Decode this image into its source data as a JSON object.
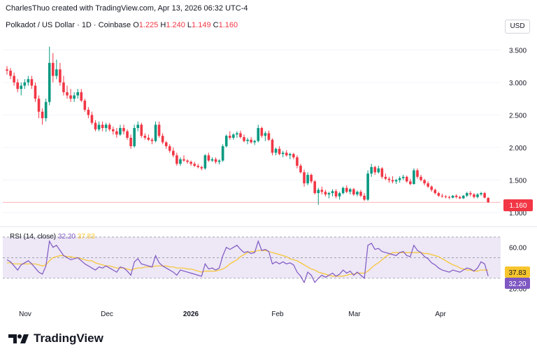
{
  "credit": "CharlesThuo created with TradingView.com, Apr 13, 2026 06:32 UTC-4",
  "legend": {
    "symbol": "Polkadot / US Dollar · 1D · Coinbase",
    "open_label": "O",
    "open": "1.225",
    "high_label": "H",
    "high": "1.240",
    "low_label": "L",
    "low": "1.149",
    "close_label": "C",
    "close": "1.160"
  },
  "currency_button": "USD",
  "rsi_legend": {
    "title": "RSI (14, close)",
    "rsi": "32.20",
    "ma": "37.83"
  },
  "brand": "TradingView",
  "colors": {
    "up": "#089981",
    "down": "#f23645",
    "rsi_line": "#7e57c2",
    "rsi_ma": "#f7c52d",
    "rsi_band": "#ede7f6",
    "text": "#131722"
  },
  "chart_data": [
    {
      "type": "candlestick",
      "title": "Polkadot / US Dollar · 1D · Coinbase",
      "ylim": [
        0.85,
        3.75
      ],
      "yticks": [
        "3.500",
        "3.000",
        "2.500",
        "2.000",
        "1.500",
        "1.000"
      ],
      "xticks": [
        "Nov",
        "Dec",
        "2026",
        "Feb",
        "Mar",
        "Apr"
      ],
      "last_price_label": "1.160",
      "candles": [
        [
          3.2,
          3.25,
          3.12,
          3.18
        ],
        [
          3.18,
          3.22,
          3.05,
          3.1
        ],
        [
          3.1,
          3.15,
          2.95,
          3.0
        ],
        [
          3.0,
          3.05,
          2.85,
          2.9
        ],
        [
          2.9,
          3.0,
          2.8,
          2.95
        ],
        [
          2.95,
          3.05,
          2.9,
          3.0
        ],
        [
          3.0,
          3.1,
          2.95,
          3.05
        ],
        [
          3.05,
          3.1,
          2.9,
          2.95
        ],
        [
          2.95,
          3.0,
          2.7,
          2.75
        ],
        [
          2.75,
          2.8,
          2.45,
          2.55
        ],
        [
          2.55,
          2.6,
          2.35,
          2.45
        ],
        [
          2.45,
          2.75,
          2.4,
          2.7
        ],
        [
          2.7,
          3.55,
          2.65,
          3.3
        ],
        [
          3.3,
          3.45,
          3.0,
          3.1
        ],
        [
          3.1,
          3.35,
          3.05,
          3.2
        ],
        [
          3.2,
          3.3,
          2.95,
          3.0
        ],
        [
          3.0,
          3.1,
          2.8,
          2.85
        ],
        [
          2.85,
          2.95,
          2.75,
          2.8
        ],
        [
          2.8,
          2.9,
          2.7,
          2.75
        ],
        [
          2.75,
          2.85,
          2.7,
          2.8
        ],
        [
          2.8,
          2.9,
          2.75,
          2.85
        ],
        [
          2.85,
          2.9,
          2.7,
          2.72
        ],
        [
          2.72,
          2.75,
          2.55,
          2.58
        ],
        [
          2.58,
          2.62,
          2.45,
          2.5
        ],
        [
          2.5,
          2.55,
          2.35,
          2.38
        ],
        [
          2.38,
          2.42,
          2.25,
          2.28
        ],
        [
          2.28,
          2.4,
          2.25,
          2.35
        ],
        [
          2.35,
          2.4,
          2.25,
          2.3
        ],
        [
          2.3,
          2.38,
          2.24,
          2.35
        ],
        [
          2.35,
          2.38,
          2.25,
          2.28
        ],
        [
          2.28,
          2.32,
          2.2,
          2.25
        ],
        [
          2.25,
          2.3,
          2.15,
          2.2
        ],
        [
          2.2,
          2.35,
          2.18,
          2.3
        ],
        [
          2.3,
          2.35,
          2.2,
          2.25
        ],
        [
          2.25,
          2.28,
          2.12,
          2.15
        ],
        [
          2.15,
          2.2,
          1.98,
          2.02
        ],
        [
          2.02,
          2.35,
          2.0,
          2.3
        ],
        [
          2.3,
          2.4,
          2.25,
          2.35
        ],
        [
          2.35,
          2.38,
          2.15,
          2.18
        ],
        [
          2.18,
          2.22,
          2.12,
          2.15
        ],
        [
          2.15,
          2.2,
          2.1,
          2.12
        ],
        [
          2.12,
          2.15,
          2.05,
          2.1
        ],
        [
          2.1,
          2.4,
          2.08,
          2.35
        ],
        [
          2.35,
          2.4,
          2.15,
          2.18
        ],
        [
          2.18,
          2.22,
          2.05,
          2.08
        ],
        [
          2.08,
          2.1,
          1.98,
          2.02
        ],
        [
          2.02,
          2.05,
          1.92,
          1.95
        ],
        [
          1.95,
          2.0,
          1.85,
          1.88
        ],
        [
          1.88,
          1.92,
          1.72,
          1.75
        ],
        [
          1.75,
          1.85,
          1.72,
          1.82
        ],
        [
          1.82,
          1.88,
          1.78,
          1.8
        ],
        [
          1.8,
          1.82,
          1.75,
          1.78
        ],
        [
          1.78,
          1.8,
          1.72,
          1.75
        ],
        [
          1.75,
          1.78,
          1.7,
          1.72
        ],
        [
          1.72,
          1.75,
          1.68,
          1.7
        ],
        [
          1.7,
          1.72,
          1.65,
          1.68
        ],
        [
          1.68,
          1.9,
          1.66,
          1.88
        ],
        [
          1.88,
          1.92,
          1.78,
          1.8
        ],
        [
          1.8,
          1.85,
          1.78,
          1.82
        ],
        [
          1.82,
          1.85,
          1.75,
          1.78
        ],
        [
          1.78,
          1.82,
          1.74,
          1.8
        ],
        [
          1.8,
          2.05,
          1.78,
          2.02
        ],
        [
          2.02,
          2.2,
          2.0,
          2.18
        ],
        [
          2.18,
          2.25,
          2.12,
          2.15
        ],
        [
          2.15,
          2.22,
          2.12,
          2.2
        ],
        [
          2.2,
          2.25,
          2.15,
          2.22
        ],
        [
          2.22,
          2.26,
          2.14,
          2.16
        ],
        [
          2.16,
          2.2,
          2.08,
          2.1
        ],
        [
          2.1,
          2.15,
          2.05,
          2.12
        ],
        [
          2.12,
          2.16,
          2.06,
          2.08
        ],
        [
          2.08,
          2.12,
          2.04,
          2.1
        ],
        [
          2.1,
          2.35,
          2.08,
          2.3
        ],
        [
          2.3,
          2.32,
          2.15,
          2.18
        ],
        [
          2.18,
          2.25,
          2.1,
          2.22
        ],
        [
          2.22,
          2.26,
          2.1,
          2.12
        ],
        [
          2.12,
          2.14,
          1.88,
          1.92
        ],
        [
          1.92,
          2.0,
          1.88,
          1.98
        ],
        [
          1.98,
          2.02,
          1.88,
          1.9
        ],
        [
          1.9,
          1.95,
          1.85,
          1.92
        ],
        [
          1.92,
          1.96,
          1.86,
          1.88
        ],
        [
          1.88,
          1.92,
          1.82,
          1.9
        ],
        [
          1.9,
          1.92,
          1.82,
          1.85
        ],
        [
          1.85,
          1.88,
          1.68,
          1.72
        ],
        [
          1.72,
          1.75,
          1.6,
          1.62
        ],
        [
          1.62,
          1.66,
          1.4,
          1.45
        ],
        [
          1.45,
          1.62,
          1.42,
          1.58
        ],
        [
          1.58,
          1.6,
          1.45,
          1.48
        ],
        [
          1.48,
          1.5,
          1.28,
          1.3
        ],
        [
          1.3,
          1.38,
          1.12,
          1.35
        ],
        [
          1.35,
          1.4,
          1.28,
          1.32
        ],
        [
          1.32,
          1.35,
          1.25,
          1.28
        ],
        [
          1.28,
          1.32,
          1.22,
          1.3
        ],
        [
          1.3,
          1.36,
          1.25,
          1.33
        ],
        [
          1.33,
          1.36,
          1.22,
          1.25
        ],
        [
          1.25,
          1.32,
          1.2,
          1.3
        ],
        [
          1.3,
          1.4,
          1.28,
          1.38
        ],
        [
          1.38,
          1.42,
          1.3,
          1.32
        ],
        [
          1.32,
          1.38,
          1.28,
          1.36
        ],
        [
          1.36,
          1.38,
          1.26,
          1.28
        ],
        [
          1.28,
          1.34,
          1.25,
          1.32
        ],
        [
          1.32,
          1.35,
          1.24,
          1.26
        ],
        [
          1.26,
          1.3,
          1.18,
          1.2
        ],
        [
          1.2,
          1.65,
          1.18,
          1.6
        ],
        [
          1.6,
          1.75,
          1.55,
          1.7
        ],
        [
          1.7,
          1.72,
          1.58,
          1.62
        ],
        [
          1.62,
          1.72,
          1.6,
          1.68
        ],
        [
          1.68,
          1.7,
          1.52,
          1.55
        ],
        [
          1.55,
          1.6,
          1.5,
          1.52
        ],
        [
          1.52,
          1.55,
          1.46,
          1.5
        ],
        [
          1.5,
          1.56,
          1.45,
          1.48
        ],
        [
          1.48,
          1.52,
          1.44,
          1.5
        ],
        [
          1.5,
          1.56,
          1.46,
          1.53
        ],
        [
          1.53,
          1.58,
          1.5,
          1.55
        ],
        [
          1.55,
          1.57,
          1.46,
          1.48
        ],
        [
          1.48,
          1.52,
          1.42,
          1.44
        ],
        [
          1.44,
          1.68,
          1.43,
          1.65
        ],
        [
          1.65,
          1.68,
          1.52,
          1.55
        ],
        [
          1.55,
          1.58,
          1.48,
          1.5
        ],
        [
          1.5,
          1.52,
          1.42,
          1.45
        ],
        [
          1.45,
          1.48,
          1.38,
          1.4
        ],
        [
          1.4,
          1.42,
          1.32,
          1.35
        ],
        [
          1.35,
          1.37,
          1.28,
          1.3
        ],
        [
          1.3,
          1.32,
          1.24,
          1.26
        ],
        [
          1.26,
          1.29,
          1.23,
          1.25
        ],
        [
          1.25,
          1.27,
          1.22,
          1.24
        ],
        [
          1.24,
          1.26,
          1.21,
          1.23
        ],
        [
          1.23,
          1.27,
          1.22,
          1.26
        ],
        [
          1.26,
          1.28,
          1.22,
          1.24
        ],
        [
          1.24,
          1.26,
          1.21,
          1.22
        ],
        [
          1.22,
          1.27,
          1.21,
          1.26
        ],
        [
          1.26,
          1.32,
          1.24,
          1.3
        ],
        [
          1.3,
          1.33,
          1.25,
          1.28
        ],
        [
          1.28,
          1.3,
          1.22,
          1.24
        ],
        [
          1.24,
          1.3,
          1.22,
          1.28
        ],
        [
          1.28,
          1.32,
          1.26,
          1.3
        ],
        [
          1.3,
          1.32,
          1.22,
          1.23
        ],
        [
          1.225,
          1.24,
          1.149,
          1.16
        ]
      ]
    },
    {
      "type": "line",
      "title": "RSI (14, close)",
      "ylim": [
        15,
        72
      ],
      "yticks": [
        "60.00",
        "20.00"
      ],
      "bands": [
        70,
        50,
        30
      ],
      "series": [
        {
          "name": "RSI",
          "last": "32.20",
          "values": [
            48,
            46,
            42,
            38,
            43,
            45,
            47,
            44,
            40,
            36,
            34,
            42,
            66,
            60,
            62,
            57,
            52,
            50,
            48,
            49,
            50,
            47,
            44,
            42,
            40,
            38,
            41,
            40,
            42,
            40,
            38,
            36,
            41,
            40,
            37,
            33,
            46,
            49,
            44,
            43,
            42,
            41,
            52,
            45,
            42,
            40,
            38,
            36,
            33,
            38,
            37,
            36,
            35,
            34,
            33,
            32,
            44,
            39,
            40,
            38,
            40,
            52,
            60,
            58,
            60,
            62,
            58,
            55,
            56,
            54,
            55,
            66,
            57,
            58,
            56,
            44,
            46,
            44,
            46,
            44,
            45,
            43,
            36,
            32,
            26,
            36,
            33,
            26,
            30,
            33,
            31,
            33,
            35,
            32,
            34,
            38,
            35,
            37,
            33,
            36,
            33,
            30,
            62,
            64,
            58,
            59,
            56,
            55,
            54,
            53,
            52,
            55,
            56,
            52,
            51,
            62,
            57,
            55,
            51,
            49,
            45,
            43,
            40,
            38,
            37,
            36,
            38,
            37,
            36,
            38,
            40,
            39,
            37,
            40,
            46,
            44,
            32.2
          ]
        },
        {
          "name": "MA",
          "last": "37.83",
          "values": [
            45,
            45,
            44,
            44,
            44,
            44,
            44,
            44,
            44,
            43,
            42,
            43,
            47,
            50,
            51,
            52,
            52,
            51,
            51,
            50,
            50,
            49,
            48,
            47,
            47,
            45,
            44,
            43,
            42,
            42,
            41,
            40,
            40,
            40,
            39,
            38,
            39,
            40,
            40,
            41,
            41,
            41,
            42,
            42,
            42,
            42,
            41,
            41,
            40,
            40,
            40,
            39,
            39,
            38,
            37,
            36,
            37,
            37,
            37,
            37,
            38,
            39,
            41,
            44,
            46,
            48,
            51,
            53,
            55,
            56,
            56,
            57,
            57,
            57,
            56,
            55,
            54,
            53,
            52,
            51,
            49,
            48,
            47,
            45,
            43,
            41,
            39,
            38,
            36,
            35,
            34,
            33,
            32,
            32,
            32,
            32,
            33,
            34,
            34,
            35,
            35,
            35,
            37,
            40,
            43,
            45,
            48,
            51,
            53,
            55,
            55,
            55,
            55,
            55,
            55,
            55,
            55,
            55,
            54,
            54,
            53,
            52,
            51,
            49,
            47,
            45,
            43,
            42,
            40,
            39,
            38,
            38,
            37,
            37,
            38,
            38,
            37.83
          ]
        }
      ]
    }
  ],
  "xaxis": {
    "labels": [
      "Nov",
      "Dec",
      "2026",
      "Feb",
      "Mar",
      "Apr"
    ]
  }
}
